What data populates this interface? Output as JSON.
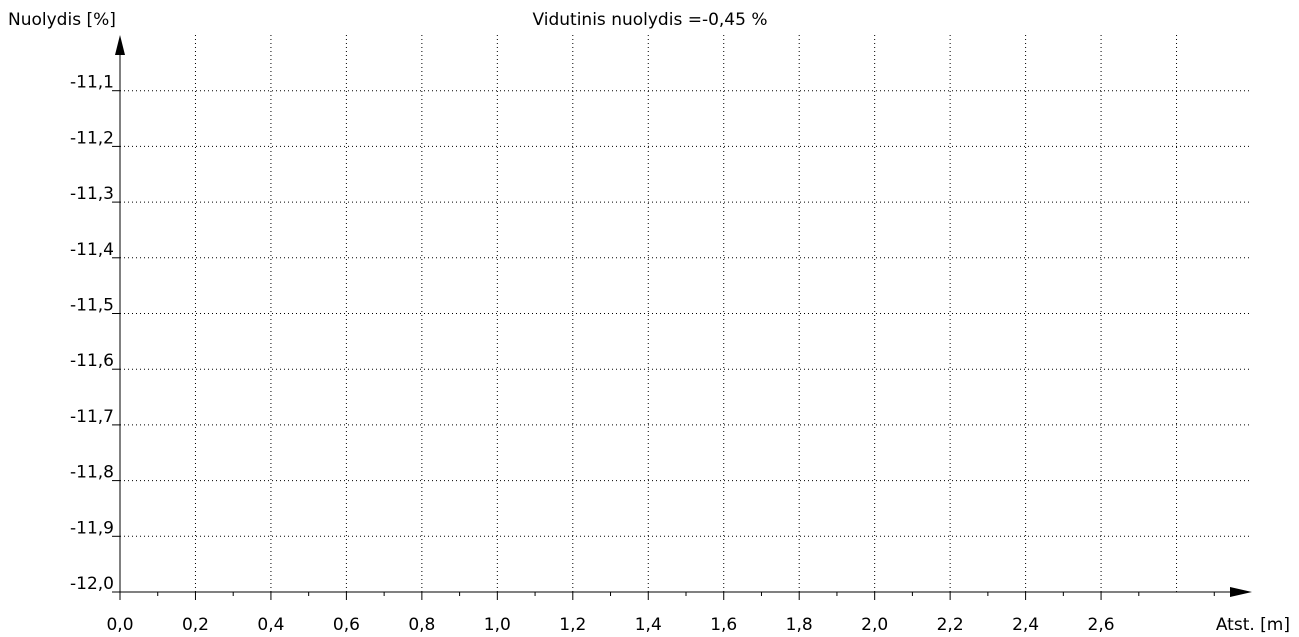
{
  "chart_data": {
    "type": "line",
    "title": "Vidutinis nuolydis =-0,45 %",
    "ylabel": "Nuolydis [%]",
    "xlabel": "Atst. [m]",
    "series": [],
    "xlim": [
      0,
      3.0
    ],
    "ylim": [
      -12.0,
      -11.0
    ],
    "xticks": [
      {
        "value": 0,
        "label": "0,0"
      },
      {
        "value": 0.2,
        "label": "0,2"
      },
      {
        "value": 0.4,
        "label": "0,4"
      },
      {
        "value": 0.6,
        "label": "0,6"
      },
      {
        "value": 0.8,
        "label": "0,8"
      },
      {
        "value": 1.0,
        "label": "1,0"
      },
      {
        "value": 1.2,
        "label": "1,2"
      },
      {
        "value": 1.4,
        "label": "1,4"
      },
      {
        "value": 1.6,
        "label": "1,6"
      },
      {
        "value": 1.8,
        "label": "1,8"
      },
      {
        "value": 2.0,
        "label": "2,0"
      },
      {
        "value": 2.2,
        "label": "2,2"
      },
      {
        "value": 2.4,
        "label": "2,4"
      },
      {
        "value": 2.6,
        "label": "2,6"
      }
    ],
    "xgrid": [
      0.2,
      0.4,
      0.6,
      0.8,
      1.0,
      1.2,
      1.4,
      1.6,
      1.8,
      2.0,
      2.2,
      2.4,
      2.6,
      2.8
    ],
    "minor_xticks": [
      0.1,
      0.3,
      0.5,
      0.7,
      0.9,
      1.1,
      1.3,
      1.5,
      1.7,
      1.9,
      2.1,
      2.3,
      2.5,
      2.7,
      2.9
    ],
    "yticks": [
      {
        "value": -11.1,
        "label": "-11,1"
      },
      {
        "value": -11.2,
        "label": "-11,2"
      },
      {
        "value": -11.3,
        "label": "-11,3"
      },
      {
        "value": -11.4,
        "label": "-11,4"
      },
      {
        "value": -11.5,
        "label": "-11,5"
      },
      {
        "value": -11.6,
        "label": "-11,6"
      },
      {
        "value": -11.7,
        "label": "-11,7"
      },
      {
        "value": -11.8,
        "label": "-11,8"
      },
      {
        "value": -11.9,
        "label": "-11,9"
      },
      {
        "value": -12.0,
        "label": "-12,0"
      }
    ],
    "grid": true
  }
}
